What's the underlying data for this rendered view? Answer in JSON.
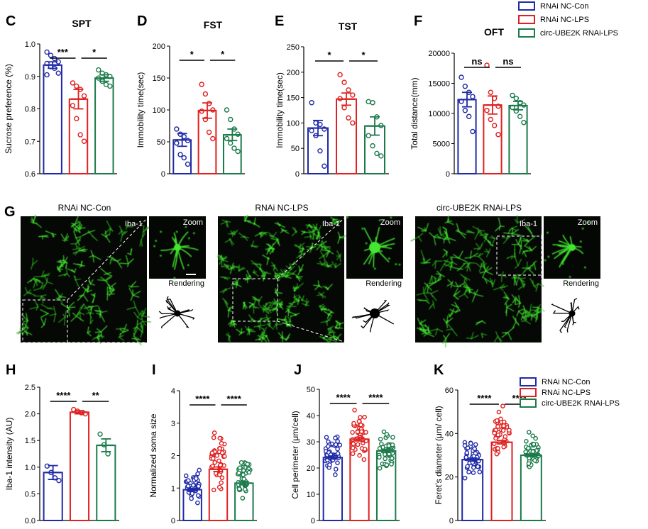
{
  "legend": [
    {
      "label": "RNAi NC-Con",
      "color": "#1f2aa6"
    },
    {
      "label": "RNAi NC-LPS",
      "color": "#e02020"
    },
    {
      "label": "circ-UBE2K RNAi-LPS",
      "color": "#1a7a4a"
    }
  ],
  "chart_data": [
    {
      "panel": "C",
      "type": "bar",
      "title": "SPT",
      "ylabel": "Sucrose preference (%)",
      "ylim": [
        0.6,
        1.0
      ],
      "yticks": [
        "0.6",
        "0.7",
        "0.8",
        "0.9",
        "1.0"
      ],
      "series": [
        {
          "name": "RNAi NC-Con",
          "mean": 0.935,
          "sem": 0.01,
          "points": [
            0.975,
            0.965,
            0.955,
            0.945,
            0.94,
            0.93,
            0.925,
            0.91,
            0.905
          ]
        },
        {
          "name": "RNAi NC-LPS",
          "mean": 0.83,
          "sem": 0.03,
          "points": [
            0.88,
            0.87,
            0.86,
            0.84,
            0.81,
            0.77,
            0.72,
            0.7
          ]
        },
        {
          "name": "circ-UBE2K RNAi-LPS",
          "mean": 0.895,
          "sem": 0.01,
          "points": [
            0.92,
            0.91,
            0.905,
            0.9,
            0.895,
            0.885,
            0.875,
            0.87
          ]
        }
      ],
      "significance": [
        "***",
        "*"
      ]
    },
    {
      "panel": "D",
      "type": "bar",
      "title": "FST",
      "ylabel": "Immobility time(sec)",
      "ylim": [
        0,
        200
      ],
      "yticks": [
        "0",
        "50",
        "100",
        "150",
        "200"
      ],
      "series": [
        {
          "name": "RNAi NC-Con",
          "mean": 53,
          "sem": 10,
          "points": [
            70,
            62,
            58,
            52,
            48,
            30,
            25,
            15
          ]
        },
        {
          "name": "RNAi NC-LPS",
          "mean": 99,
          "sem": 12,
          "points": [
            140,
            125,
            110,
            100,
            98,
            85,
            65,
            55
          ]
        },
        {
          "name": "circ-UBE2K RNAi-LPS",
          "mean": 61,
          "sem": 9,
          "points": [
            100,
            85,
            70,
            62,
            55,
            48,
            40,
            35
          ]
        }
      ],
      "significance": [
        "*",
        "*"
      ]
    },
    {
      "panel": "E",
      "type": "bar",
      "title": "TST",
      "ylabel": "Immobility time(sec)",
      "ylim": [
        0,
        250
      ],
      "yticks": [
        "0",
        "50",
        "100",
        "150",
        "200",
        "250"
      ],
      "series": [
        {
          "name": "RNAi NC-Con",
          "mean": 90,
          "sem": 15,
          "points": [
            140,
            100,
            97,
            88,
            85,
            75,
            45,
            15
          ]
        },
        {
          "name": "RNAi NC-LPS",
          "mean": 147,
          "sem": 12,
          "points": [
            195,
            180,
            165,
            155,
            148,
            130,
            110,
            100
          ]
        },
        {
          "name": "circ-UBE2K RNAi-LPS",
          "mean": 94,
          "sem": 18,
          "points": [
            142,
            140,
            112,
            95,
            75,
            55,
            40,
            35
          ]
        }
      ],
      "significance": [
        "*",
        "*"
      ]
    },
    {
      "panel": "F",
      "type": "bar",
      "title": "OFT",
      "ylabel": "Total distance(mm)",
      "ylim": [
        0,
        20000
      ],
      "yticks": [
        "0",
        "5000",
        "10000",
        "15000",
        "20000"
      ],
      "series": [
        {
          "name": "RNAi NC-Con",
          "mean": 12300,
          "sem": 1200,
          "points": [
            16000,
            14500,
            13500,
            12800,
            12000,
            10500,
            9500,
            7000
          ]
        },
        {
          "name": "RNAi NC-LPS",
          "mean": 11400,
          "sem": 1500,
          "points": [
            18000,
            13500,
            12500,
            11200,
            10500,
            9000,
            8000,
            6500
          ]
        },
        {
          "name": "circ-UBE2K RNAi-LPS",
          "mean": 11300,
          "sem": 700,
          "points": [
            13000,
            12500,
            11800,
            11400,
            11000,
            10400,
            9500,
            8500
          ]
        }
      ],
      "significance": [
        "ns",
        "ns"
      ]
    },
    {
      "panel": "H",
      "type": "bar",
      "title": "",
      "ylabel": "Iba-1 intensity (AU)",
      "ylim": [
        0,
        2.5
      ],
      "yticks": [
        "0.0",
        "0.5",
        "1.0",
        "1.5",
        "2.0",
        "2.5"
      ],
      "series": [
        {
          "name": "RNAi NC-Con",
          "mean": 0.9,
          "sem": 0.13,
          "points": [
            1.02,
            0.9,
            0.8,
            0.75
          ]
        },
        {
          "name": "RNAi NC-LPS",
          "mean": 2.03,
          "sem": 0.03,
          "points": [
            2.08,
            2.05,
            2.02,
            2.0
          ]
        },
        {
          "name": "circ-UBE2K RNAi-LPS",
          "mean": 1.41,
          "sem": 0.12,
          "points": [
            1.62,
            1.42,
            1.25
          ]
        }
      ],
      "significance": [
        "****",
        "**"
      ]
    },
    {
      "panel": "I",
      "type": "bar",
      "title": "",
      "ylabel": "Normalized soma size",
      "ylim": [
        0,
        4
      ],
      "yticks": [
        "0",
        "1",
        "2",
        "3",
        "4"
      ],
      "series": [
        {
          "name": "RNAi NC-Con",
          "mean": 0.95,
          "sem": 0.04,
          "dist": {
            "lo": 0.4,
            "hi": 1.7,
            "n": 45
          }
        },
        {
          "name": "RNAi NC-LPS",
          "mean": 1.58,
          "sem": 0.07,
          "dist": {
            "lo": 0.8,
            "hi": 2.9,
            "n": 45
          }
        },
        {
          "name": "circ-UBE2K RNAi-LPS",
          "mean": 1.15,
          "sem": 0.05,
          "dist": {
            "lo": 0.55,
            "hi": 2.1,
            "n": 45
          }
        }
      ],
      "significance": [
        "****",
        "****"
      ]
    },
    {
      "panel": "J",
      "type": "bar",
      "title": "",
      "ylabel": "Cell perimeter (μm/cell)",
      "ylim": [
        0,
        50
      ],
      "yticks": [
        "0",
        "10",
        "20",
        "30",
        "40",
        "50"
      ],
      "series": [
        {
          "name": "RNAi NC-Con",
          "mean": 24,
          "sem": 0.6,
          "dist": {
            "lo": 15,
            "hi": 35,
            "n": 45
          }
        },
        {
          "name": "RNAi NC-LPS",
          "mean": 31,
          "sem": 0.7,
          "dist": {
            "lo": 20,
            "hi": 45,
            "n": 45
          }
        },
        {
          "name": "circ-UBE2K RNAi-LPS",
          "mean": 26.5,
          "sem": 0.6,
          "dist": {
            "lo": 17,
            "hi": 36,
            "n": 45
          }
        }
      ],
      "significance": [
        "****",
        "****"
      ]
    },
    {
      "panel": "K",
      "type": "bar",
      "title": "",
      "ylabel": "Feret's  diameter (μm/ cell)",
      "ylim": [
        0,
        60
      ],
      "yticks": [
        "0",
        "20",
        "40",
        "60"
      ],
      "series": [
        {
          "name": "RNAi NC-Con",
          "mean": 28,
          "sem": 0.7,
          "dist": {
            "lo": 17,
            "hi": 40,
            "n": 45
          }
        },
        {
          "name": "RNAi NC-LPS",
          "mean": 36,
          "sem": 0.8,
          "dist": {
            "lo": 24,
            "hi": 56,
            "n": 45
          }
        },
        {
          "name": "circ-UBE2K RNAi-LPS",
          "mean": 30,
          "sem": 0.6,
          "dist": {
            "lo": 21,
            "hi": 42,
            "n": 45
          }
        }
      ],
      "significance": [
        "****",
        "****"
      ]
    }
  ],
  "panel_g": {
    "letter": "G",
    "groups": [
      {
        "title": "RNAi NC-Con",
        "stain_label": "Iba-1",
        "zoom_label": "Zoom",
        "render_label": "Rendering"
      },
      {
        "title": "RNAi NC-LPS",
        "stain_label": "Iba-1",
        "zoom_label": "Zoom",
        "render_label": "Rendering"
      },
      {
        "title": "circ-UBE2K RNAi-LPS",
        "stain_label": "Iba-1",
        "zoom_label": "Zoom",
        "render_label": "Rendering"
      }
    ]
  }
}
